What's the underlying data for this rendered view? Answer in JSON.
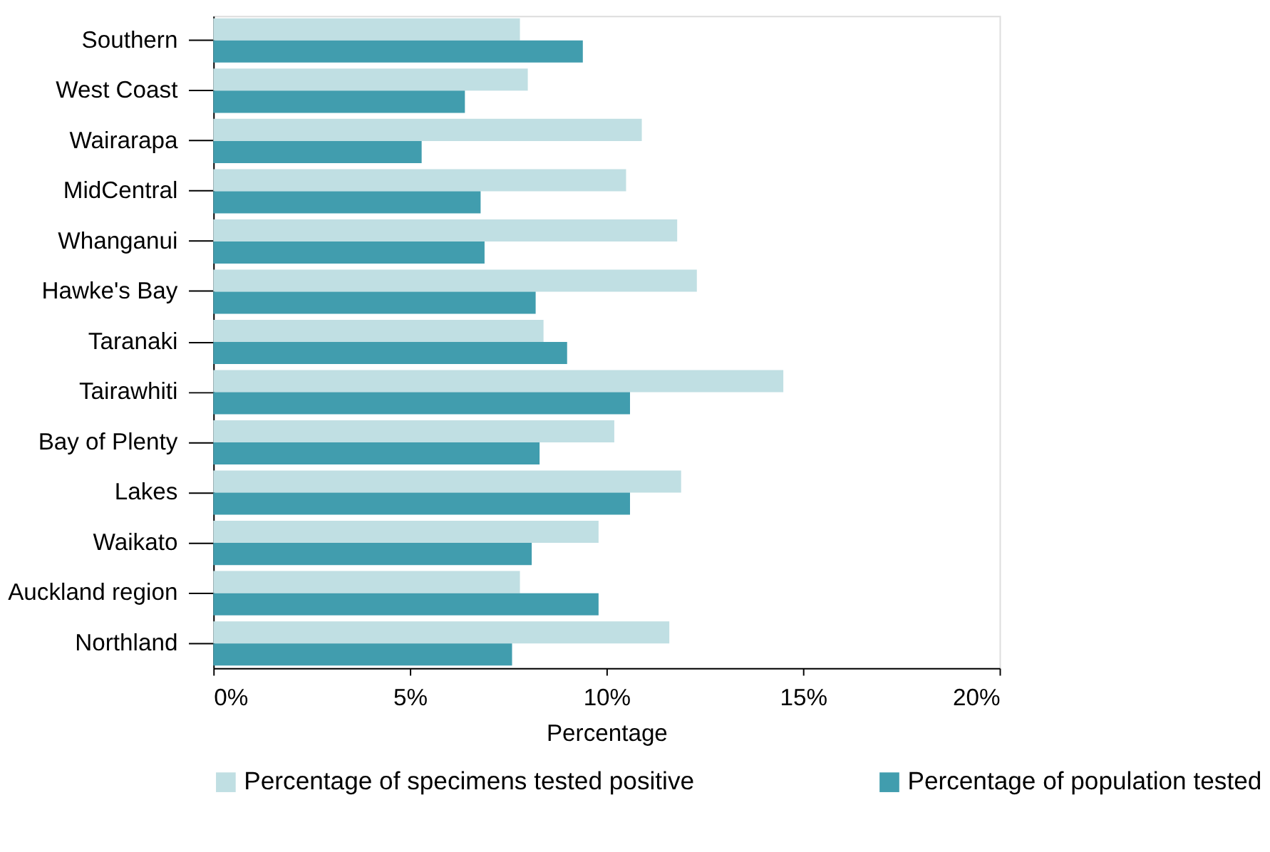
{
  "chart_data": {
    "type": "bar",
    "orientation": "horizontal",
    "xlabel": "Percentage",
    "categories": [
      "Southern",
      "West Coast",
      "Wairarapa",
      "MidCentral",
      "Whanganui",
      "Hawke's Bay",
      "Taranaki",
      "Tairawhiti",
      "Bay of Plenty",
      "Lakes",
      "Waikato",
      "Auckland region",
      "Northland"
    ],
    "series": [
      {
        "name": "Percentage of specimens tested positive",
        "color": "#c0dfe3",
        "values": [
          7.8,
          8.0,
          10.9,
          10.5,
          11.8,
          12.3,
          8.4,
          14.5,
          10.2,
          11.9,
          9.8,
          7.8,
          11.6
        ]
      },
      {
        "name": "Percentage of population tested",
        "color": "#419dae",
        "values": [
          9.4,
          6.4,
          5.3,
          6.8,
          6.9,
          8.2,
          9.0,
          10.6,
          8.3,
          10.6,
          8.1,
          9.8,
          7.6
        ]
      }
    ],
    "xlim": [
      0,
      20
    ],
    "xticks": [
      {
        "value": 0,
        "label": "0%"
      },
      {
        "value": 5,
        "label": "5%"
      },
      {
        "value": 10,
        "label": "10%"
      },
      {
        "value": 15,
        "label": "15%"
      },
      {
        "value": 20,
        "label": "20%"
      }
    ],
    "grid": false,
    "legend": "bottom"
  }
}
